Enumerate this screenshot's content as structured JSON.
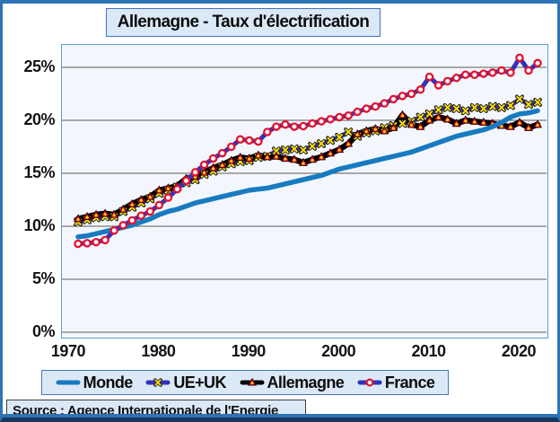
{
  "page": {
    "title": "Allemagne - Taux d'électrification",
    "source": "Source : Agence Internationale de l'Energie"
  },
  "colors": {
    "frame_border": "#2e74b5",
    "frame_bottom": "#17375e",
    "box_fill": "#dbe9f7",
    "box_border": "#4472c4",
    "plot_bg": "#f3f7fd",
    "plot_border": "#5b9bd5",
    "grid": "#595959",
    "monde_blue": "#187bc0",
    "indigo_line": "#3232b8",
    "marker_red": "#e8112d",
    "marker_yellow": "#ffe100",
    "allemagne_black": "#000000"
  },
  "chart_data": {
    "type": "line",
    "title": "Allemagne - Taux d'électrification",
    "xlabel": "",
    "ylabel": "",
    "grid": true,
    "legend_position": "bottom",
    "x_ticks": [
      1970,
      1980,
      1990,
      2000,
      2010,
      2020
    ],
    "y_ticks": [
      "0%",
      "5%",
      "10%",
      "15%",
      "20%",
      "25%"
    ],
    "y_tick_values": [
      0,
      5,
      10,
      15,
      20,
      25
    ],
    "ylim": [
      0,
      27.2
    ],
    "xlim": [
      1969,
      2023
    ],
    "x": [
      1971,
      1972,
      1973,
      1974,
      1975,
      1976,
      1977,
      1978,
      1979,
      1980,
      1981,
      1982,
      1983,
      1984,
      1985,
      1986,
      1987,
      1988,
      1989,
      1990,
      1991,
      1992,
      1993,
      1994,
      1995,
      1996,
      1997,
      1998,
      1999,
      2000,
      2001,
      2002,
      2003,
      2004,
      2005,
      2006,
      2007,
      2008,
      2009,
      2010,
      2011,
      2012,
      2013,
      2014,
      2015,
      2016,
      2017,
      2018,
      2019,
      2020,
      2021,
      2022
    ],
    "series": [
      {
        "name": "Monde",
        "line_color": "#187bc0",
        "marker": "none",
        "values": [
          9.0,
          9.1,
          9.3,
          9.5,
          9.7,
          9.9,
          10.1,
          10.4,
          10.7,
          11.1,
          11.4,
          11.6,
          11.9,
          12.2,
          12.4,
          12.6,
          12.8,
          13.0,
          13.2,
          13.4,
          13.5,
          13.6,
          13.8,
          14.0,
          14.2,
          14.4,
          14.6,
          14.8,
          15.1,
          15.4,
          15.6,
          15.8,
          16.0,
          16.2,
          16.4,
          16.6,
          16.8,
          17.0,
          17.3,
          17.6,
          17.9,
          18.2,
          18.5,
          18.7,
          18.9,
          19.1,
          19.4,
          19.8,
          20.3,
          20.6,
          20.7,
          20.9
        ]
      },
      {
        "name": "UE+UK",
        "line_color": "#3232b8",
        "marker": "x",
        "marker_color": "#ffe100",
        "values": [
          10.4,
          10.6,
          10.8,
          10.9,
          10.9,
          11.4,
          11.8,
          12.2,
          12.6,
          13.1,
          13.4,
          13.7,
          14.1,
          14.4,
          14.9,
          15.2,
          15.6,
          15.9,
          16.1,
          16.2,
          16.5,
          16.6,
          17.1,
          17.2,
          17.3,
          17.2,
          17.55,
          17.8,
          18.1,
          18.4,
          18.9,
          18.5,
          18.8,
          19.0,
          19.3,
          19.5,
          19.7,
          19.9,
          20.3,
          20.6,
          21.0,
          21.2,
          21.1,
          20.9,
          21.2,
          21.1,
          21.3,
          21.2,
          21.4,
          22.0,
          21.5,
          21.7
        ]
      },
      {
        "name": "Allemagne",
        "line_color": "#000000",
        "marker": "triangle",
        "marker_color": "#e8112d",
        "values": [
          10.7,
          10.9,
          11.1,
          11.2,
          11.1,
          11.6,
          12.1,
          12.5,
          12.8,
          13.4,
          13.6,
          13.8,
          14.5,
          14.7,
          15.1,
          15.5,
          15.8,
          16.2,
          16.5,
          16.4,
          16.7,
          16.55,
          16.6,
          16.4,
          16.3,
          16.0,
          16.3,
          16.55,
          16.9,
          17.25,
          17.8,
          18.7,
          19.0,
          19.2,
          19.0,
          19.3,
          20.5,
          19.6,
          19.4,
          20.0,
          20.3,
          20.1,
          19.7,
          20.0,
          19.9,
          19.8,
          19.7,
          19.5,
          19.4,
          19.8,
          19.3,
          19.6
        ]
      },
      {
        "name": "France",
        "line_color": "#3232b8",
        "marker": "circle",
        "marker_color": "#e8112d",
        "values": [
          8.35,
          8.4,
          8.5,
          8.7,
          9.6,
          10.1,
          10.55,
          11.0,
          11.4,
          12.0,
          12.7,
          13.5,
          14.3,
          15.1,
          15.8,
          16.4,
          16.9,
          17.5,
          18.2,
          18.1,
          18.0,
          18.9,
          19.4,
          19.6,
          19.4,
          19.45,
          19.7,
          19.9,
          20.1,
          20.3,
          20.45,
          20.8,
          21.1,
          21.3,
          21.6,
          22.0,
          22.3,
          22.5,
          22.9,
          24.1,
          23.3,
          23.7,
          24.0,
          24.3,
          24.3,
          24.4,
          24.5,
          24.7,
          24.5,
          25.9,
          24.7,
          25.4
        ]
      }
    ]
  }
}
